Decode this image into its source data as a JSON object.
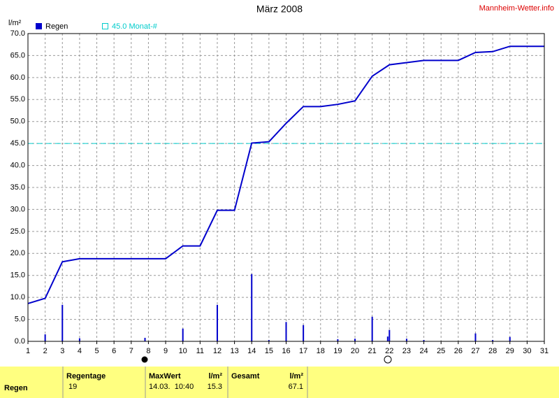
{
  "chart_data": {
    "type": "combo",
    "title": "März 2008",
    "source": "Mannheim-Wetter.info",
    "y_label": "l/m²",
    "xlim": [
      1,
      31
    ],
    "xticks": [
      1,
      2,
      3,
      4,
      5,
      6,
      7,
      8,
      9,
      10,
      11,
      12,
      13,
      14,
      15,
      16,
      17,
      18,
      19,
      20,
      21,
      22,
      23,
      24,
      25,
      26,
      27,
      28,
      29,
      30,
      31
    ],
    "ylim": [
      0,
      70
    ],
    "yticks": [
      {
        "value": 0,
        "label": "0.0"
      },
      {
        "value": 5,
        "label": "5.0"
      },
      {
        "value": 10,
        "label": "10.0"
      },
      {
        "value": 15,
        "label": "15.0"
      },
      {
        "value": 20,
        "label": "20.0"
      },
      {
        "value": 25,
        "label": "25.0"
      },
      {
        "value": 30,
        "label": "30.0"
      },
      {
        "value": 35,
        "label": "35.0"
      },
      {
        "value": 40,
        "label": "40.0"
      },
      {
        "value": 45,
        "label": "45.0"
      },
      {
        "value": 50,
        "label": "50.0"
      },
      {
        "value": 55,
        "label": "55.0"
      },
      {
        "value": 60,
        "label": "60.0"
      },
      {
        "value": 65,
        "label": "65.0"
      },
      {
        "value": 70,
        "label": "70.0"
      }
    ],
    "grid": true,
    "series": [
      {
        "name": "Regen",
        "type": "bar",
        "color": "#0000cc",
        "x": [
          2,
          3,
          4,
          7.8,
          10,
          12,
          14,
          15,
          16,
          17,
          19,
          20,
          21,
          21.9,
          22,
          23,
          24,
          27,
          28,
          29
        ],
        "values": [
          1.6,
          8.3,
          0.7,
          0.8,
          2.9,
          8.3,
          15.3,
          0.3,
          4.4,
          3.7,
          0.5,
          0.6,
          5.6,
          1.1,
          2.6,
          0.6,
          0.3,
          1.8,
          0.3,
          1.0
        ]
      },
      {
        "type": "line",
        "color": "#0000cc",
        "x": [
          1,
          2,
          3,
          4,
          5,
          6,
          7,
          8,
          9,
          10,
          11,
          12,
          13,
          14,
          15,
          16,
          17,
          18,
          19,
          20,
          21,
          22,
          23,
          24,
          25,
          26,
          27,
          28,
          29,
          30,
          31
        ],
        "values": [
          8.6,
          9.8,
          18.1,
          18.8,
          18.8,
          18.8,
          18.8,
          18.8,
          18.8,
          21.7,
          21.7,
          29.8,
          29.8,
          45.1,
          45.4,
          49.6,
          53.4,
          53.4,
          53.9,
          54.7,
          60.3,
          62.9,
          63.4,
          63.9,
          63.9,
          63.9,
          65.7,
          65.9,
          67.1,
          67.1,
          67.1
        ]
      }
    ],
    "reference_line": {
      "value": 45.0,
      "label": "45.0 Monat-#",
      "color": "#00cccc"
    }
  },
  "table": {
    "headers": [
      "Regentage",
      "MaxWert",
      "l/m²",
      "Gesamt",
      "l/m²"
    ],
    "rows": [
      [
        "Regen",
        "19",
        "14.03.  10:40",
        "15.3",
        "67.1"
      ]
    ]
  }
}
